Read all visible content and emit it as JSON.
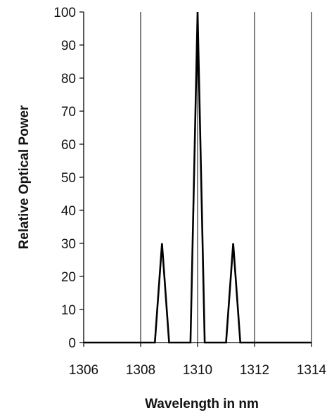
{
  "chart_data": {
    "type": "line",
    "title": "",
    "xlabel": "Wavelength in nm",
    "ylabel": "Relative Optical Power",
    "xlim": [
      1306,
      1314
    ],
    "ylim": [
      0,
      100
    ],
    "x_ticks": [
      1306,
      1308,
      1310,
      1312,
      1314
    ],
    "y_ticks": [
      0,
      10,
      20,
      30,
      40,
      50,
      60,
      70,
      80,
      90,
      100
    ],
    "x_tick_labels": [
      "1306",
      "1308",
      "1310",
      "1312",
      "1314"
    ],
    "y_tick_labels": [
      "0",
      "10",
      "20",
      "30",
      "40",
      "50",
      "60",
      "70",
      "80",
      "90",
      "100"
    ],
    "grid": "vertical-major",
    "legend": "none",
    "line_color": "#000000",
    "series": [
      {
        "x": [
          1306,
          1308.5,
          1308.75,
          1309,
          1309.75,
          1310,
          1310.25,
          1311,
          1311.25,
          1311.5,
          1314
        ],
        "y": [
          0,
          0,
          30,
          0,
          0,
          100,
          0,
          0,
          30,
          0,
          0
        ]
      }
    ]
  }
}
